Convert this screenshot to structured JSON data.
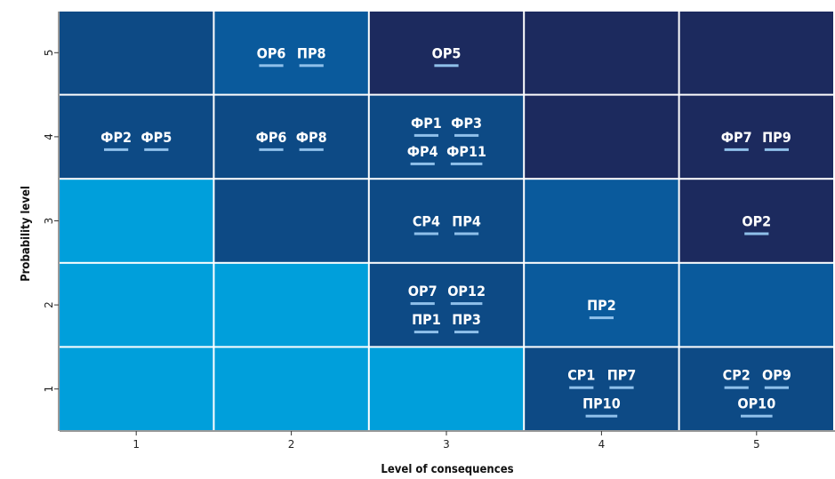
{
  "chart_data": {
    "type": "heatmap",
    "xlabel": "Level of consequences",
    "ylabel": "Probability level",
    "x_ticks": [
      "1",
      "2",
      "3",
      "4",
      "5"
    ],
    "y_ticks": [
      "1",
      "2",
      "3",
      "4",
      "5"
    ],
    "colors": {
      "lightest": "#009fdb",
      "medium": "#0a5a9c",
      "dark": "#0d4a85",
      "darkest": "#1c2a5e",
      "underline": "#8fc0ea"
    },
    "cells": [
      {
        "probability": 5,
        "consequence": 1,
        "shade": "dark",
        "risks": []
      },
      {
        "probability": 5,
        "consequence": 2,
        "shade": "medium",
        "risks": [
          "ОР6",
          "ПР8"
        ]
      },
      {
        "probability": 5,
        "consequence": 3,
        "shade": "darkest",
        "risks": [
          "ОР5"
        ]
      },
      {
        "probability": 5,
        "consequence": 4,
        "shade": "darkest",
        "risks": []
      },
      {
        "probability": 5,
        "consequence": 5,
        "shade": "darkest",
        "risks": []
      },
      {
        "probability": 4,
        "consequence": 1,
        "shade": "dark",
        "risks": [
          "ФР2",
          "ФР5"
        ]
      },
      {
        "probability": 4,
        "consequence": 2,
        "shade": "dark",
        "risks": [
          "ФР6",
          "ФР8"
        ]
      },
      {
        "probability": 4,
        "consequence": 3,
        "shade": "dark",
        "risks": [
          "ФР1",
          "ФР3",
          "ФР4",
          "ФР11"
        ]
      },
      {
        "probability": 4,
        "consequence": 4,
        "shade": "darkest",
        "risks": []
      },
      {
        "probability": 4,
        "consequence": 5,
        "shade": "darkest",
        "risks": [
          "ФР7",
          "ПР9"
        ]
      },
      {
        "probability": 3,
        "consequence": 1,
        "shade": "lightest",
        "risks": []
      },
      {
        "probability": 3,
        "consequence": 2,
        "shade": "dark",
        "risks": []
      },
      {
        "probability": 3,
        "consequence": 3,
        "shade": "dark",
        "risks": [
          "СР4",
          "ПР4"
        ]
      },
      {
        "probability": 3,
        "consequence": 4,
        "shade": "medium",
        "risks": []
      },
      {
        "probability": 3,
        "consequence": 5,
        "shade": "darkest",
        "risks": [
          "ОР2"
        ]
      },
      {
        "probability": 2,
        "consequence": 1,
        "shade": "lightest",
        "risks": []
      },
      {
        "probability": 2,
        "consequence": 2,
        "shade": "lightest",
        "risks": []
      },
      {
        "probability": 2,
        "consequence": 3,
        "shade": "dark",
        "risks": [
          "ОР7",
          "ОР12",
          "ПР1",
          "ПР3"
        ]
      },
      {
        "probability": 2,
        "consequence": 4,
        "shade": "medium",
        "risks": [
          "ПР2"
        ]
      },
      {
        "probability": 2,
        "consequence": 5,
        "shade": "medium",
        "risks": []
      },
      {
        "probability": 1,
        "consequence": 1,
        "shade": "lightest",
        "risks": []
      },
      {
        "probability": 1,
        "consequence": 2,
        "shade": "lightest",
        "risks": []
      },
      {
        "probability": 1,
        "consequence": 3,
        "shade": "lightest",
        "risks": []
      },
      {
        "probability": 1,
        "consequence": 4,
        "shade": "dark",
        "risks": [
          "СР1",
          "ПР7",
          "ПР10"
        ]
      },
      {
        "probability": 1,
        "consequence": 5,
        "shade": "dark",
        "risks": [
          "СР2",
          "ОР9",
          "ОР10"
        ]
      }
    ]
  }
}
